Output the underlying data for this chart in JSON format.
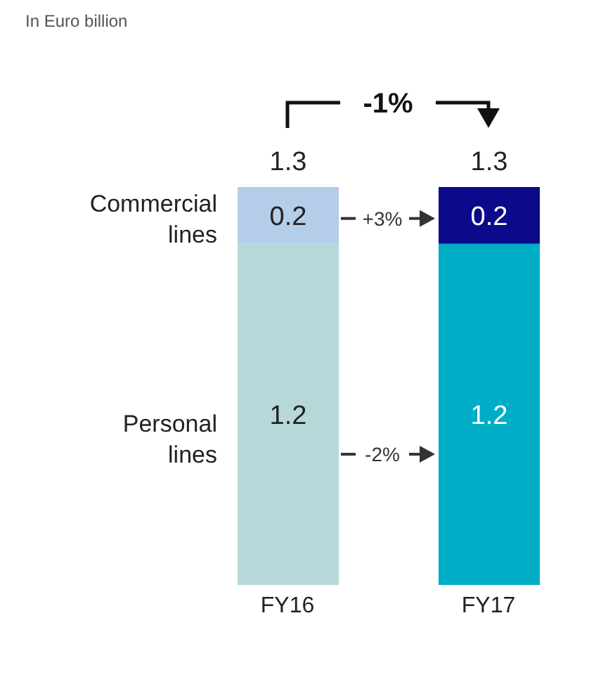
{
  "chart_data": {
    "type": "bar",
    "stacked": true,
    "categories": [
      "FY16",
      "FY17"
    ],
    "series": [
      {
        "name": "Personal lines",
        "colors": [
          "#b7d8d8",
          "#00adc6"
        ],
        "values": [
          1.2,
          1.2
        ]
      },
      {
        "name": "Commercial lines",
        "colors": [
          "#b4cde9",
          "#0a0a8a"
        ],
        "values": [
          0.2,
          0.2
        ]
      }
    ],
    "data_labels": true,
    "totals": [
      "1.3",
      "1.3"
    ],
    "annotations": [
      "In Euro billion",
      "-1%",
      "+3%",
      "-2%"
    ]
  }
}
